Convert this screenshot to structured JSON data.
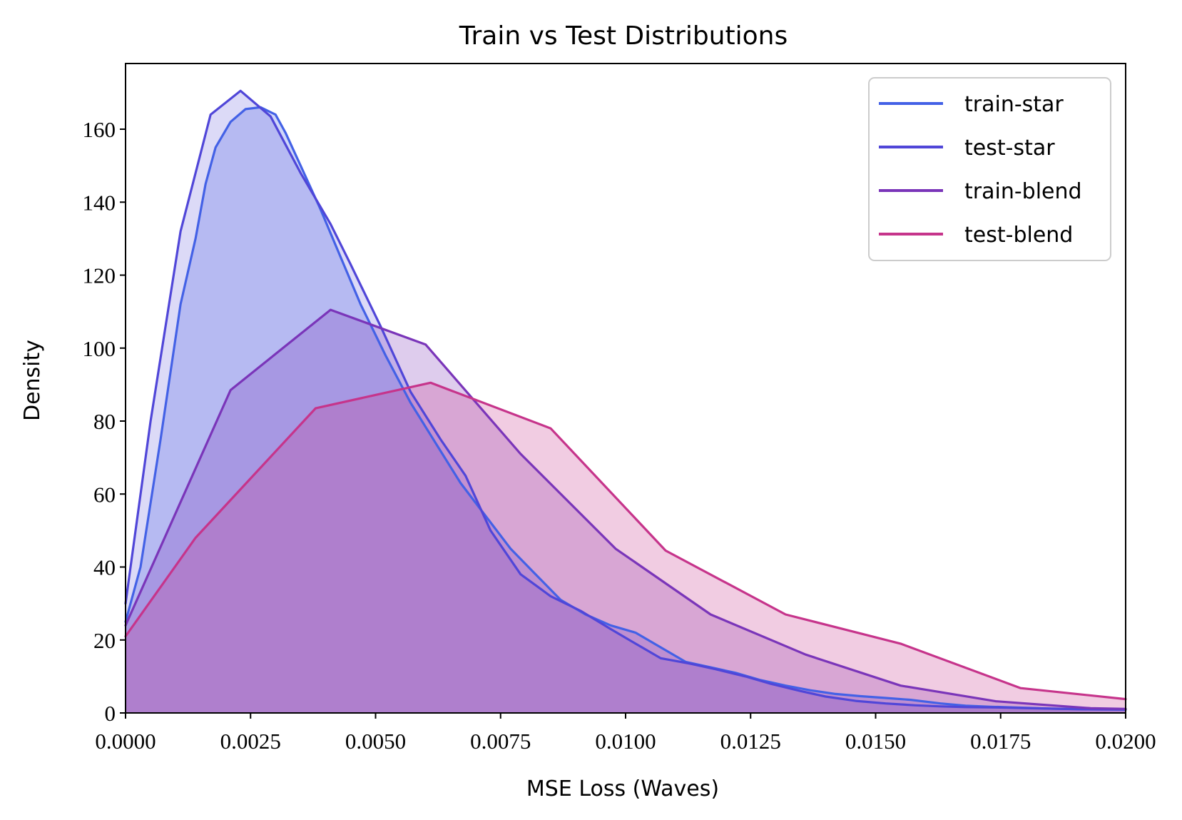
{
  "chart_data": {
    "type": "area",
    "title": "Train vs Test Distributions",
    "xlabel": "MSE Loss (Waves)",
    "ylabel": "Density",
    "xlim": [
      0.0,
      0.02
    ],
    "ylim": [
      0,
      178
    ],
    "x_ticks": [
      "0.0000",
      "0.0025",
      "0.0050",
      "0.0075",
      "0.0100",
      "0.0125",
      "0.0150",
      "0.0175",
      "0.0200"
    ],
    "y_ticks": [
      "0",
      "20",
      "40",
      "60",
      "80",
      "100",
      "120",
      "140",
      "160"
    ],
    "grid": false,
    "legend_position": "top-right",
    "series": [
      {
        "name": "train-star",
        "color": "#4361e6",
        "fill": "#4361e6",
        "fill_opacity": 0.25,
        "points": [
          [
            0.0,
            25
          ],
          [
            0.0003,
            40
          ],
          [
            0.0007,
            75
          ],
          [
            0.0011,
            112
          ],
          [
            0.0014,
            130
          ],
          [
            0.0016,
            145
          ],
          [
            0.0018,
            155
          ],
          [
            0.0021,
            162
          ],
          [
            0.0024,
            165.5
          ],
          [
            0.0027,
            166
          ],
          [
            0.003,
            164
          ],
          [
            0.0032,
            159
          ],
          [
            0.0035,
            150
          ],
          [
            0.0039,
            138
          ],
          [
            0.0043,
            125
          ],
          [
            0.0047,
            112
          ],
          [
            0.0052,
            98
          ],
          [
            0.0057,
            85
          ],
          [
            0.0062,
            74
          ],
          [
            0.0067,
            63
          ],
          [
            0.0072,
            54
          ],
          [
            0.0077,
            45
          ],
          [
            0.0082,
            38
          ],
          [
            0.0087,
            31
          ],
          [
            0.0092,
            27
          ],
          [
            0.0097,
            24
          ],
          [
            0.0102,
            22
          ],
          [
            0.0107,
            18
          ],
          [
            0.0112,
            14
          ],
          [
            0.0117,
            12.5
          ],
          [
            0.0122,
            11
          ],
          [
            0.0127,
            9
          ],
          [
            0.0132,
            7.5
          ],
          [
            0.0137,
            6.2
          ],
          [
            0.0142,
            5.2
          ],
          [
            0.0147,
            4.6
          ],
          [
            0.0152,
            4.1
          ],
          [
            0.0157,
            3.6
          ],
          [
            0.0163,
            2.6
          ],
          [
            0.0168,
            2.0
          ],
          [
            0.0173,
            1.7
          ],
          [
            0.0178,
            1.5
          ],
          [
            0.0185,
            1.2
          ],
          [
            0.0192,
            1.0
          ],
          [
            0.02,
            0.9
          ]
        ]
      },
      {
        "name": "test-star",
        "color": "#5046d8",
        "fill": "#5046d8",
        "fill_opacity": 0.2,
        "points": [
          [
            0.0,
            30
          ],
          [
            0.0005,
            80
          ],
          [
            0.0011,
            132
          ],
          [
            0.0017,
            164
          ],
          [
            0.0023,
            170.5
          ],
          [
            0.0029,
            163.5
          ],
          [
            0.0035,
            148
          ],
          [
            0.0041,
            134
          ],
          [
            0.0045,
            123
          ],
          [
            0.0051,
            106
          ],
          [
            0.0057,
            88
          ],
          [
            0.0063,
            75
          ],
          [
            0.0068,
            65
          ],
          [
            0.0073,
            50
          ],
          [
            0.0079,
            38
          ],
          [
            0.0085,
            32
          ],
          [
            0.0091,
            28
          ],
          [
            0.0097,
            23
          ],
          [
            0.0102,
            19
          ],
          [
            0.0107,
            15
          ],
          [
            0.0113,
            13.5
          ],
          [
            0.0118,
            12
          ],
          [
            0.0124,
            10
          ],
          [
            0.0129,
            8
          ],
          [
            0.0135,
            6
          ],
          [
            0.014,
            4.5
          ],
          [
            0.0146,
            3.3
          ],
          [
            0.0152,
            2.6
          ],
          [
            0.0158,
            2.1
          ],
          [
            0.0163,
            1.8
          ],
          [
            0.0168,
            1.6
          ],
          [
            0.0174,
            1.5
          ],
          [
            0.0181,
            1.3
          ],
          [
            0.0188,
            1.1
          ],
          [
            0.0195,
            1.0
          ],
          [
            0.02,
            1.0
          ]
        ]
      },
      {
        "name": "train-blend",
        "color": "#7a35b9",
        "fill": "#7a35b9",
        "fill_opacity": 0.25,
        "points": [
          [
            0.0,
            24
          ],
          [
            0.0021,
            88.5
          ],
          [
            0.0041,
            110.5
          ],
          [
            0.006,
            101
          ],
          [
            0.0079,
            71
          ],
          [
            0.0098,
            45
          ],
          [
            0.0117,
            27
          ],
          [
            0.0136,
            16
          ],
          [
            0.0155,
            7.5
          ],
          [
            0.0174,
            3.2
          ],
          [
            0.0193,
            1.3
          ],
          [
            0.02,
            1.1
          ]
        ]
      },
      {
        "name": "test-blend",
        "color": "#c6348b",
        "fill": "#c6348b",
        "fill_opacity": 0.25,
        "points": [
          [
            0.0,
            21
          ],
          [
            0.0014,
            48
          ],
          [
            0.0038,
            83.5
          ],
          [
            0.0061,
            90.5
          ],
          [
            0.0085,
            78
          ],
          [
            0.0108,
            44.5
          ],
          [
            0.0132,
            27
          ],
          [
            0.0155,
            19
          ],
          [
            0.0179,
            6.8
          ],
          [
            0.02,
            3.8
          ]
        ]
      }
    ]
  }
}
